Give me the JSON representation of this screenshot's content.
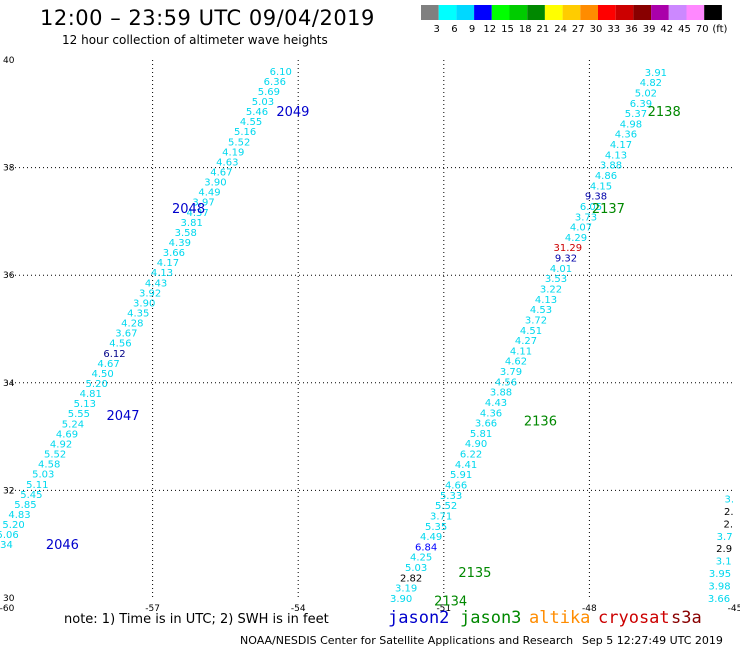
{
  "title": "12:00  –  23:59  UTC  09/04/2019",
  "subtitle": "12 hour collection of altimeter wave heights",
  "legend": {
    "colors": [
      "#808080",
      "#00ffff",
      "#00d8ff",
      "#0000ff",
      "#00ff00",
      "#00cc00",
      "#008800",
      "#ffff00",
      "#ffcc00",
      "#ff8c00",
      "#ff0000",
      "#cc0000",
      "#880000",
      "#aa00aa",
      "#cc88ff",
      "#ff88ff",
      "#000000"
    ],
    "labels": [
      "3",
      "6",
      "9",
      "12",
      "15",
      "18",
      "21",
      "24",
      "27",
      "30",
      "33",
      "36",
      "39",
      "42",
      "45",
      "70",
      "(ft)"
    ]
  },
  "note": "note:  1) Time is in UTC;  2) SWH is in feet",
  "satellites": [
    {
      "name": "jason2",
      "color": "#0000cc"
    },
    {
      "name": "jason3",
      "color": "#008800"
    },
    {
      "name": "altika",
      "color": "#ff8c00"
    },
    {
      "name": "cryosat",
      "color": "#cc0000"
    },
    {
      "name": "s3a",
      "color": "#880000"
    }
  ],
  "footer": "NOAA/NESDIS Center for Satellite Applications and Research",
  "footer_time": "Sep  5 12:27:49 UTC 2019",
  "chart_data": {
    "type": "scatter",
    "xlim": [
      -60,
      -45
    ],
    "ylim": [
      30,
      40
    ],
    "x_ticks": [
      "-60",
      "-57",
      "-54",
      "-51",
      "-48",
      "-45"
    ],
    "y_ticks": [
      "30",
      "32",
      "34",
      "36",
      "38",
      "40"
    ],
    "grid": true,
    "tracks": [
      {
        "values": [
          "4.34",
          "5.06",
          "5.20",
          "4.83",
          "5.85",
          "5.45",
          "5.11",
          "5.03",
          "4.58",
          "5.52",
          "4.92",
          "4.69",
          "5.24",
          "5.55",
          "5.13",
          "4.81",
          "5.20",
          "4.50",
          "4.67",
          "6.12",
          "4.56",
          "3.67",
          "4.28",
          "4.35",
          "3.90",
          "3.92",
          "4.43",
          "4.13",
          "4.17",
          "3.66",
          "4.39",
          "3.58",
          "3.81",
          "4.37",
          "3.97",
          "4.49",
          "3.90",
          "4.67",
          "4.63",
          "4.19",
          "5.52",
          "5.16",
          "4.55",
          "5.46",
          "5.03",
          "5.69",
          "6.36",
          "6.10"
        ],
        "colors": {
          "6.12": "#000088"
        },
        "start": [
          -59.88,
          31.0
        ],
        "end": [
          -54.13,
          39.8
        ],
        "anchor": "end",
        "labels": [
          {
            "id": "2046",
            "x": -59.2,
            "y": 31.0,
            "color": "#0000cc"
          },
          {
            "id": "2047",
            "x": -57.95,
            "y": 33.4,
            "color": "#0000cc"
          },
          {
            "id": "2048",
            "x": -56.6,
            "y": 37.25,
            "color": "#0000cc"
          },
          {
            "id": "2049",
            "x": -54.45,
            "y": 39.05,
            "color": "#0000cc"
          }
        ]
      },
      {
        "values": [
          "3.90",
          "3.19",
          "2.82",
          "5.03",
          "4.25",
          "6.84",
          "4.49",
          "5.35",
          "3.71",
          "5.52",
          "5.33",
          "4.66",
          "5.91",
          "4.41",
          "6.22",
          "4.90",
          "5.81",
          "3.66",
          "4.36",
          "4.43",
          "3.88",
          "4.56",
          "3.79",
          "4.62",
          "4.11",
          "4.27",
          "4.51",
          "3.72",
          "4.53",
          "4.13",
          "3.22",
          "3.53",
          "4.01",
          "9.32",
          "31.29",
          "4.29",
          "4.07",
          "3.73",
          "6.05",
          "9.38",
          "4.15",
          "4.86",
          "3.88",
          "4.13",
          "4.17",
          "4.36",
          "4.98",
          "5.37",
          "6.39",
          "5.02",
          "4.82",
          "3.91"
        ],
        "colors": {
          "2.82": "#000000",
          "6.84": "#0000ff",
          "9.32": "#0000aa",
          "9.38": "#0000aa",
          "31.29": "#cc0000"
        },
        "start": [
          -51.65,
          30.0
        ],
        "end": [
          -46.4,
          39.78
        ],
        "anchor": "end",
        "labels": [
          {
            "id": "2134",
            "x": -51.2,
            "y": 29.95,
            "color": "#008800"
          },
          {
            "id": "2135",
            "x": -50.7,
            "y": 30.48,
            "color": "#008800"
          },
          {
            "id": "2136",
            "x": -49.35,
            "y": 33.3,
            "color": "#008800"
          },
          {
            "id": "2137",
            "x": -47.95,
            "y": 37.25,
            "color": "#008800"
          },
          {
            "id": "2138",
            "x": -46.8,
            "y": 39.05,
            "color": "#008800"
          }
        ]
      },
      {
        "values": [
          "3.66",
          "3.98",
          "3.95",
          "3.1",
          "2.9",
          "3.7",
          "2.",
          "2.",
          "3."
        ],
        "colors": {
          "2.9": "#000000",
          "2.": "#000000"
        },
        "start": [
          -45.1,
          30.0
        ],
        "end": [
          -45.02,
          31.85
        ],
        "anchor": "end",
        "labels": []
      }
    ]
  }
}
